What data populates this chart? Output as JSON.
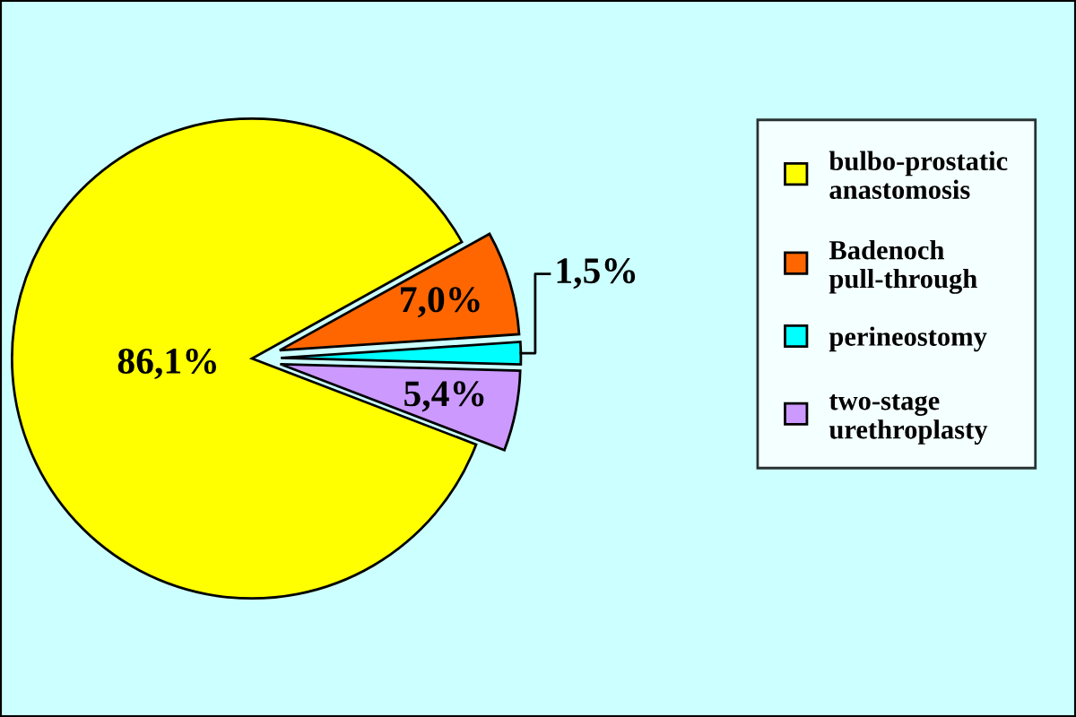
{
  "chart_data": {
    "type": "pie",
    "categories": [
      "bulbo-prostatic anastomosis",
      "Badenoch pull-through",
      "perineostomy",
      "two-stage urethroplasty"
    ],
    "values": [
      86.1,
      7.0,
      1.5,
      5.4
    ],
    "colors": [
      "#ffff00",
      "#ff6600",
      "#00ffff",
      "#cc99ff"
    ],
    "value_labels": [
      "86,1%",
      "7,0%",
      "1,5%",
      "5,4%"
    ],
    "legend": "right"
  }
}
